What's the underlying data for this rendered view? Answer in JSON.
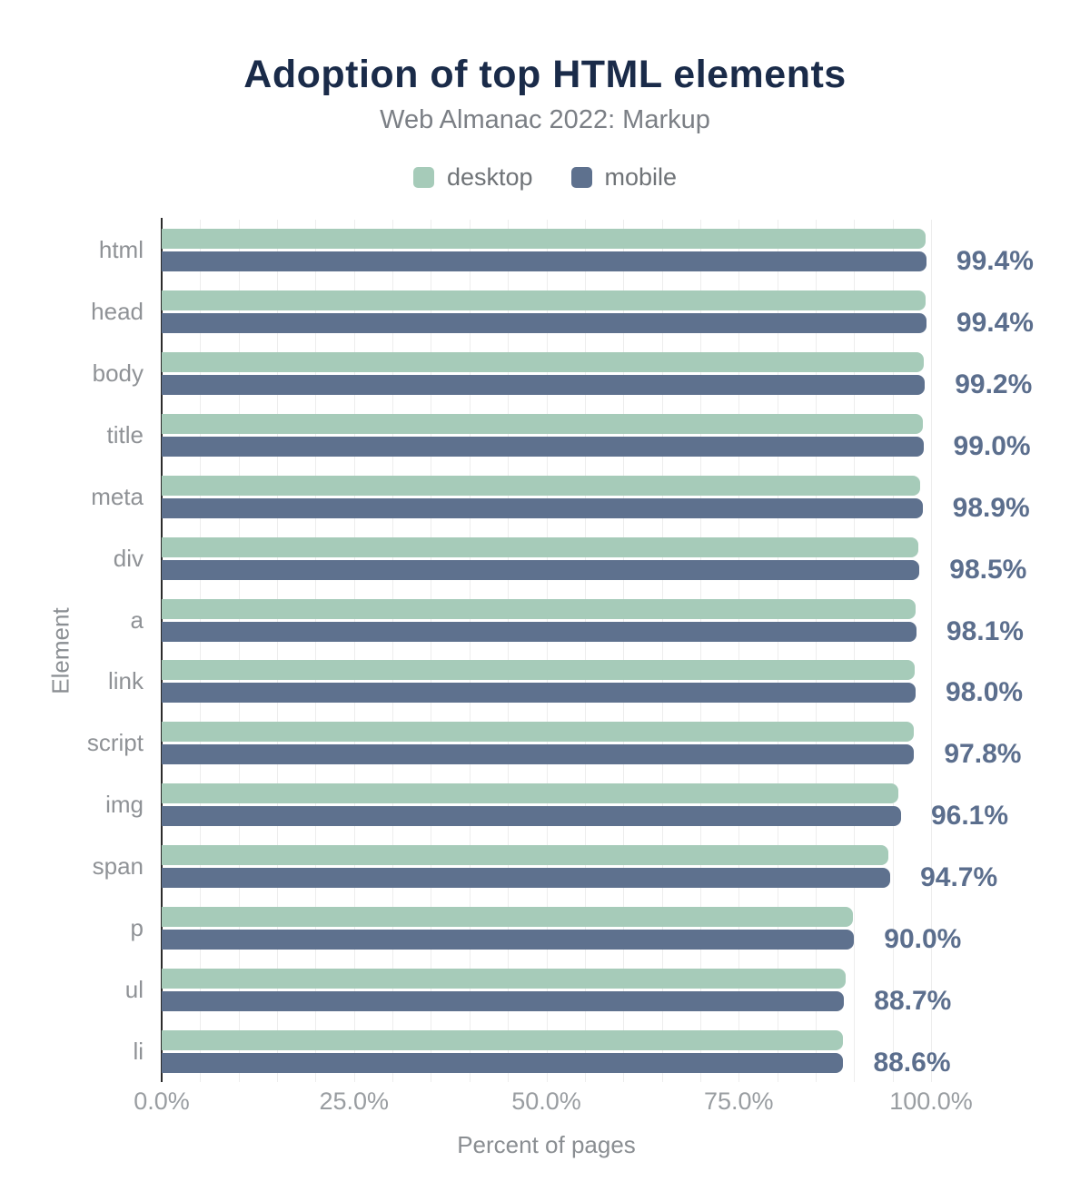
{
  "title": "Adoption of top HTML elements",
  "subtitle": "Web Almanac 2022: Markup",
  "legend": [
    {
      "label": "desktop",
      "color": "#a6cbb9"
    },
    {
      "label": "mobile",
      "color": "#5e718e"
    }
  ],
  "colors": {
    "title": "#1a2b49",
    "desktop_bar": "#a6cbb9",
    "mobile_bar": "#5e718e",
    "value_label": "#5b6e8d",
    "grid_line": "#ededed",
    "axis_line": "#2b2b2b"
  },
  "chart_data": {
    "type": "bar",
    "orientation": "horizontal",
    "title": "Adoption of top HTML elements",
    "subtitle": "Web Almanac 2022: Markup",
    "xlabel": "Percent of pages",
    "ylabel": "Element",
    "xlim": [
      0,
      100
    ],
    "x_ticks": [
      "0.0%",
      "25.0%",
      "50.0%",
      "75.0%",
      "100.0%"
    ],
    "grid": "vertical minor gridlines every 5%",
    "legend_position": "top center",
    "categories": [
      "html",
      "head",
      "body",
      "title",
      "meta",
      "div",
      "a",
      "link",
      "script",
      "img",
      "span",
      "p",
      "ul",
      "li"
    ],
    "series": [
      {
        "name": "desktop",
        "values": [
          99.3,
          99.3,
          99.1,
          98.9,
          98.6,
          98.4,
          98.0,
          97.9,
          97.7,
          95.8,
          94.4,
          89.9,
          88.9,
          88.6
        ]
      },
      {
        "name": "mobile",
        "values": [
          99.4,
          99.4,
          99.2,
          99.0,
          98.9,
          98.5,
          98.1,
          98.0,
          97.8,
          96.1,
          94.7,
          90.0,
          88.7,
          88.6
        ]
      }
    ],
    "value_labels": [
      "99.4%",
      "99.4%",
      "99.2%",
      "99.0%",
      "98.9%",
      "98.5%",
      "98.1%",
      "98.0%",
      "97.8%",
      "96.1%",
      "94.7%",
      "90.0%",
      "88.7%",
      "88.6%"
    ]
  }
}
